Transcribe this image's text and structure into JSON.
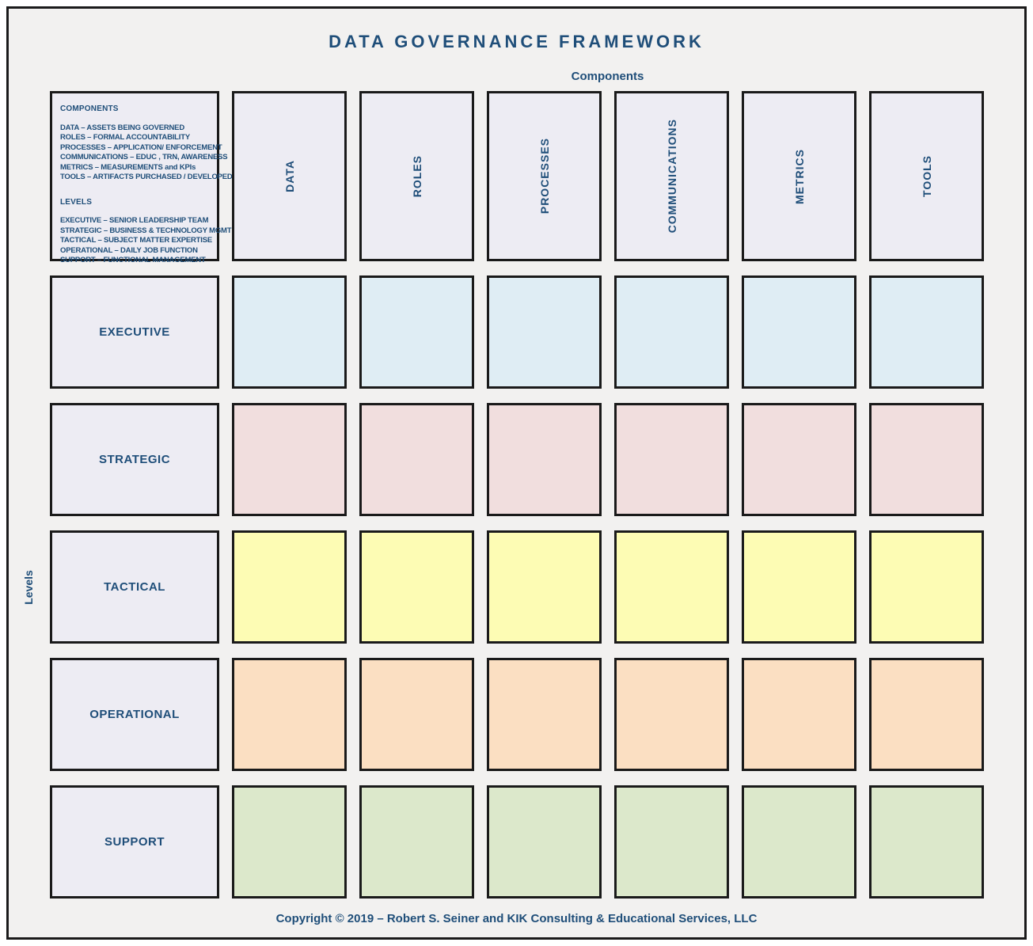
{
  "title": "DATA GOVERNANCE FRAMEWORK",
  "axis": {
    "columns_label": "Components",
    "rows_label": "Levels"
  },
  "legend": {
    "components_heading": "COMPONENTS",
    "components": [
      "DATA – ASSETS BEING GOVERNED",
      "ROLES – FORMAL ACCOUNTABILITY",
      "PROCESSES – APPLICATION/ ENFORCEMENT",
      "COMMUNICATIONS – EDUC , TRN, AWARENESS",
      "METRICS – MEASUREMENTS and KPIs",
      "TOOLS – ARTIFACTS PURCHASED / DEVELOPED"
    ],
    "levels_heading": "LEVELS",
    "levels": [
      "EXECUTIVE – SENIOR LEADERSHIP TEAM",
      "STRATEGIC – BUSINESS & TECHNOLOGY MGMT",
      "TACTICAL – SUBJECT MATTER EXPERTISE",
      "OPERATIONAL – DAILY JOB FUNCTION",
      "SUPPORT – FUNCTIONAL MANAGEMENT"
    ]
  },
  "columns": [
    "DATA",
    "ROLES",
    "PROCESSES",
    "COMMUNICATIONS",
    "METRICS",
    "TOOLS"
  ],
  "rows": [
    {
      "label": "EXECUTIVE",
      "color": "#dfedf4"
    },
    {
      "label": "STRATEGIC",
      "color": "#f1dede"
    },
    {
      "label": "TACTICAL",
      "color": "#fdfcb4"
    },
    {
      "label": "OPERATIONAL",
      "color": "#fbdfc2"
    },
    {
      "label": "SUPPORT",
      "color": "#dce8cb"
    }
  ],
  "colors": {
    "accent_text": "#1f4e79",
    "header_fill": "#edecf3",
    "canvas": "#f2f1f0",
    "cell_border": "#1a1a1a"
  },
  "footer": "Copyright © 2019 – Robert S. Seiner and KIK Consulting & Educational Services, LLC"
}
